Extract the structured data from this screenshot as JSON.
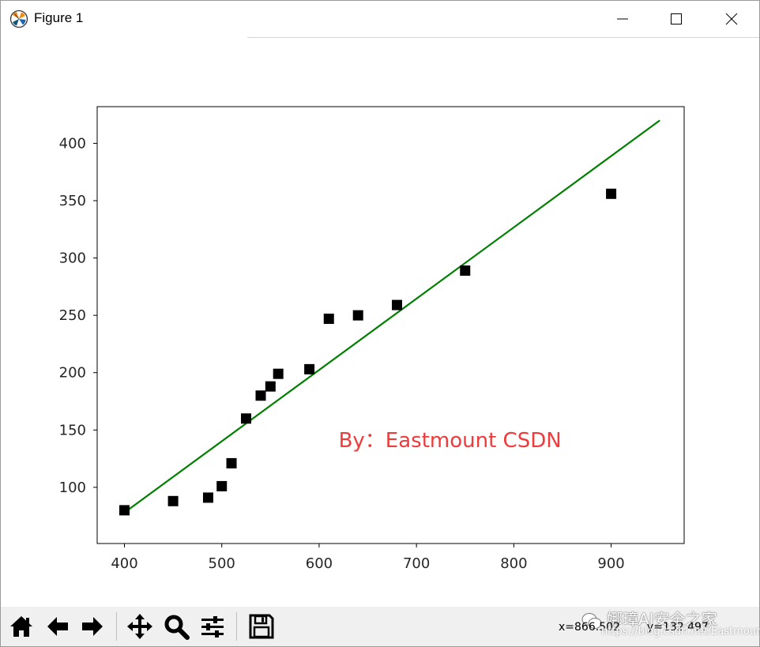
{
  "window": {
    "title": "Figure 1"
  },
  "chart_data": {
    "type": "scatter",
    "title": "",
    "xlabel": "",
    "ylabel": "",
    "xlim": [
      372,
      975
    ],
    "ylim": [
      51,
      432
    ],
    "xticks": [
      400,
      500,
      600,
      700,
      800,
      900
    ],
    "yticks": [
      100,
      150,
      200,
      250,
      300,
      350,
      400
    ],
    "xtick_labels": [
      "400",
      "500",
      "600",
      "700",
      "800",
      "900"
    ],
    "ytick_labels": [
      "100",
      "150",
      "200",
      "250",
      "300",
      "350",
      "400"
    ],
    "grid": false,
    "series": [
      {
        "kind": "scatter",
        "marker": "square",
        "color": "#000000",
        "x": [
          400,
          450,
          486,
          500,
          510,
          525,
          540,
          550,
          558,
          590,
          610,
          640,
          680,
          750,
          900
        ],
        "y": [
          80,
          88,
          91,
          101,
          121,
          160,
          180,
          188,
          199,
          203,
          247,
          250,
          259,
          289,
          356
        ]
      },
      {
        "kind": "line",
        "color": "#008000",
        "x": [
          400,
          950
        ],
        "y": [
          78,
          420
        ]
      }
    ],
    "annotation": {
      "text": "By：Eastmount CSDN",
      "x": 620,
      "y": 135,
      "color": "#ee3b3b"
    }
  },
  "toolbar": {
    "buttons": [
      {
        "name": "home",
        "icon": "home-icon"
      },
      {
        "name": "back",
        "icon": "arrow-left-icon"
      },
      {
        "name": "forward",
        "icon": "arrow-right-icon"
      },
      {
        "name": "pan",
        "icon": "move-icon"
      },
      {
        "name": "zoom",
        "icon": "magnifier-icon"
      },
      {
        "name": "configure",
        "icon": "sliders-icon"
      },
      {
        "name": "save",
        "icon": "floppy-icon"
      }
    ],
    "x_readout": "x=866.502",
    "y_readout": "y=132.497"
  },
  "watermark": {
    "brand": "娜璋AI安全之家",
    "url": "https://blog.csdn.net/Eastmount"
  }
}
